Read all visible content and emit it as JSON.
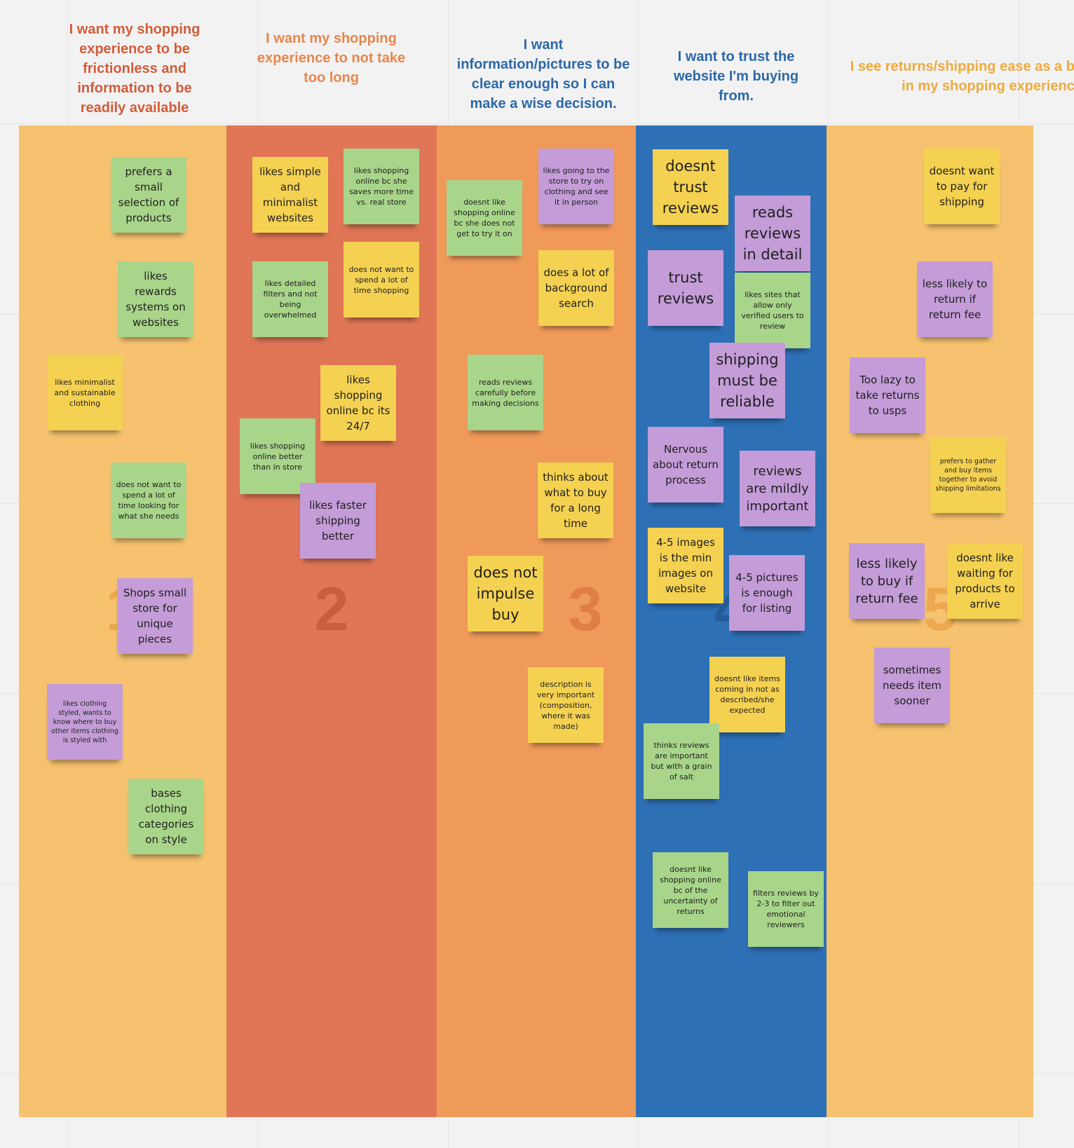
{
  "colors": {
    "background": "#f2f2f2",
    "col1": "#f6c26f",
    "col2": "#e07656",
    "col3": "#f09a5a",
    "col4": "#2e70b6",
    "col5": "#f6c26f",
    "note_green": "#a8d58a",
    "note_yellow": "#f4d151",
    "note_purple": "#c49cd8"
  },
  "headers": [
    {
      "text": "I want my shopping experience to be frictionless and information to be readily available",
      "color": "#d15c3a"
    },
    {
      "text": "I want my shopping experience to not take too long",
      "color": "#e8864c"
    },
    {
      "text": "I want information/pictures to be clear enough so I can make a wise decision.",
      "color": "#2c68a8"
    },
    {
      "text": "I want to trust the website I'm buying from.",
      "color": "#2c68a8"
    },
    {
      "text": "I see returns/shipping ease as a big hurdle in my shopping experience",
      "color": "#eeab3c"
    }
  ],
  "columns": [
    {
      "number": "1",
      "notes": [
        {
          "text": "prefers a small selection of products",
          "color": "green"
        },
        {
          "text": "likes rewards systems on websites",
          "color": "green"
        },
        {
          "text": "likes minimalist and sustainable clothing",
          "color": "yellow"
        },
        {
          "text": "does not want to spend a lot of time looking for what she needs",
          "color": "green"
        },
        {
          "text": "Shops small store for unique pieces",
          "color": "purple"
        },
        {
          "text": "likes clothing styled, wants to know where to buy other items clothing is styled with",
          "color": "purple"
        },
        {
          "text": "bases clothing categories on style",
          "color": "green"
        }
      ]
    },
    {
      "number": "2",
      "notes": [
        {
          "text": "likes simple and minimalist websites",
          "color": "yellow"
        },
        {
          "text": "likes shopping online bc she saves more time vs. real store",
          "color": "green"
        },
        {
          "text": "likes detailed filters and not being overwhelmed",
          "color": "green"
        },
        {
          "text": "does not want to spend a lot of time shopping",
          "color": "yellow"
        },
        {
          "text": "likes shopping online bc its 24/7",
          "color": "yellow"
        },
        {
          "text": "likes shopping online better than in store",
          "color": "green"
        },
        {
          "text": "likes faster shipping better",
          "color": "purple"
        }
      ]
    },
    {
      "number": "3",
      "notes": [
        {
          "text": "likes going to the store to try on clothing and see it in person",
          "color": "purple"
        },
        {
          "text": "doesnt like shopping online bc she does not get to try it on",
          "color": "green"
        },
        {
          "text": "does a lot of background search",
          "color": "yellow"
        },
        {
          "text": "reads reviews carefully before making decisions",
          "color": "green"
        },
        {
          "text": "thinks about what to buy for a long time",
          "color": "yellow"
        },
        {
          "text": "does not impulse buy",
          "color": "yellow"
        },
        {
          "text": "description is very important (composition, where it was made)",
          "color": "yellow"
        }
      ]
    },
    {
      "number": "4",
      "notes": [
        {
          "text": "doesnt trust reviews",
          "color": "yellow"
        },
        {
          "text": "reads reviews in detail",
          "color": "purple"
        },
        {
          "text": "trust reviews",
          "color": "purple"
        },
        {
          "text": "likes sites that allow only verified users to review",
          "color": "green"
        },
        {
          "text": "shipping must be reliable",
          "color": "purple"
        },
        {
          "text": "Nervous about return process",
          "color": "purple"
        },
        {
          "text": "reviews are mildly important",
          "color": "purple"
        },
        {
          "text": "4-5 images is the min images on website",
          "color": "yellow"
        },
        {
          "text": "4-5 pictures is enough for listing",
          "color": "purple"
        },
        {
          "text": "doesnt like items coming in not as described/she expected",
          "color": "yellow"
        },
        {
          "text": "thinks reviews are important but with a grain of salt",
          "color": "green"
        },
        {
          "text": "doesnt like shopping online bc of the uncertainty of returns",
          "color": "green"
        },
        {
          "text": "filters reviews by 2-3 to filter out emotional reviewers",
          "color": "green"
        }
      ]
    },
    {
      "number": "5",
      "notes": [
        {
          "text": "doesnt want to pay for shipping",
          "color": "yellow"
        },
        {
          "text": "less likely to return if return fee",
          "color": "purple"
        },
        {
          "text": "Too lazy to take returns to usps",
          "color": "purple"
        },
        {
          "text": "prefers to gather and buy items together to avoid shipping limitations",
          "color": "yellow"
        },
        {
          "text": "less likely to buy if return fee",
          "color": "purple"
        },
        {
          "text": "doesnt like waiting for products to arrive",
          "color": "yellow"
        },
        {
          "text": "sometimes needs item sooner",
          "color": "purple"
        }
      ]
    }
  ]
}
